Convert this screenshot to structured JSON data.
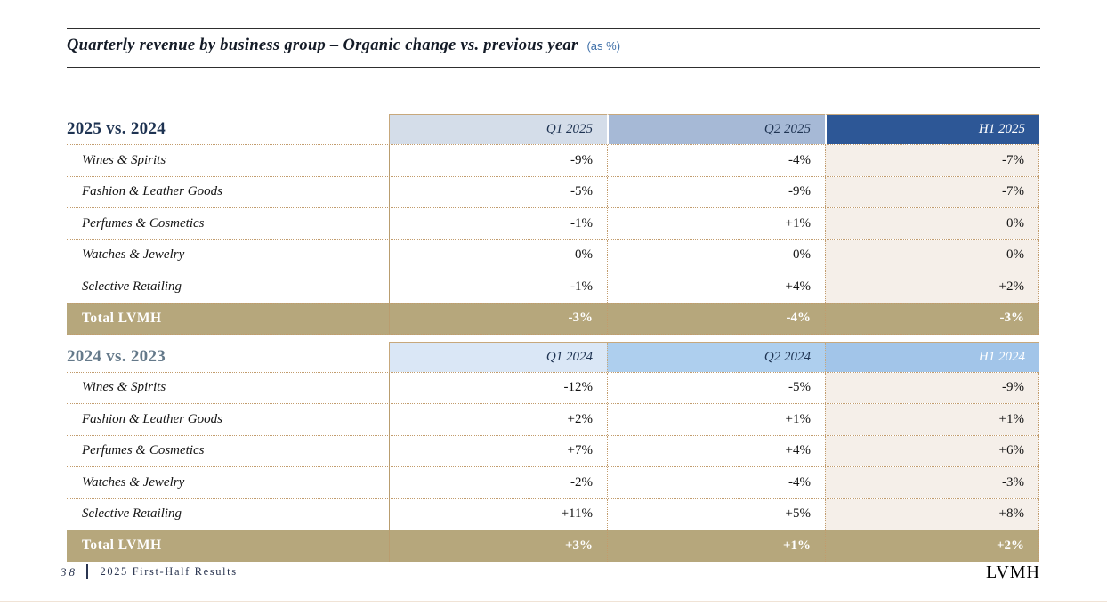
{
  "title": {
    "main": "Quarterly revenue by business group – Organic change vs. previous year",
    "suffix": "(as %)"
  },
  "tables": [
    {
      "section_label": "2025 vs. 2024",
      "columns": [
        "Q1 2025",
        "Q2 2025",
        "H1 2025"
      ],
      "rows": [
        {
          "label": "Wines & Spirits",
          "values": [
            "-9%",
            "-4%",
            "-7%"
          ]
        },
        {
          "label": "Fashion & Leather Goods",
          "values": [
            "-5%",
            "-9%",
            "-7%"
          ]
        },
        {
          "label": "Perfumes & Cosmetics",
          "values": [
            "-1%",
            "+1%",
            "0%"
          ]
        },
        {
          "label": "Watches & Jewelry",
          "values": [
            "0%",
            "0%",
            "0%"
          ]
        },
        {
          "label": "Selective Retailing",
          "values": [
            "-1%",
            "+4%",
            "+2%"
          ]
        },
        {
          "label": "Total LVMH",
          "values": [
            "-3%",
            "-4%",
            "-3%"
          ]
        }
      ]
    },
    {
      "section_label": "2024 vs. 2023",
      "columns": [
        "Q1 2024",
        "Q2 2024",
        "H1 2024"
      ],
      "rows": [
        {
          "label": "Wines & Spirits",
          "values": [
            "-12%",
            "-5%",
            "-9%"
          ]
        },
        {
          "label": "Fashion & Leather Goods",
          "values": [
            "+2%",
            "+1%",
            "+1%"
          ]
        },
        {
          "label": "Perfumes & Cosmetics",
          "values": [
            "+7%",
            "+4%",
            "+6%"
          ]
        },
        {
          "label": "Watches & Jewelry",
          "values": [
            "-2%",
            "-4%",
            "-3%"
          ]
        },
        {
          "label": "Selective Retailing",
          "values": [
            "+11%",
            "+5%",
            "+8%"
          ]
        },
        {
          "label": "Total LVMH",
          "values": [
            "+3%",
            "+1%",
            "+2%"
          ]
        }
      ]
    }
  ],
  "footer": {
    "page_number": "38",
    "deck_title": "2025 First-Half Results",
    "logo": "LVMH"
  },
  "colors": {
    "h1_2025_header": "#2d5796",
    "q1_2025_header": "#d4dde9",
    "q2_2025_header": "#a6b9d6",
    "q1_2024_header": "#dae7f6",
    "q2_2024_header": "#aecfee",
    "h1_2024_header": "#a2c5e9",
    "h1_column_fill": "#f5efe9",
    "total_row_fill": "#b6a77c",
    "dotted_border": "#c29c6d",
    "section_label_2025": "#1e3352",
    "section_label_2024": "#64798a",
    "title_suffix_blue": "#3e6fa8"
  }
}
